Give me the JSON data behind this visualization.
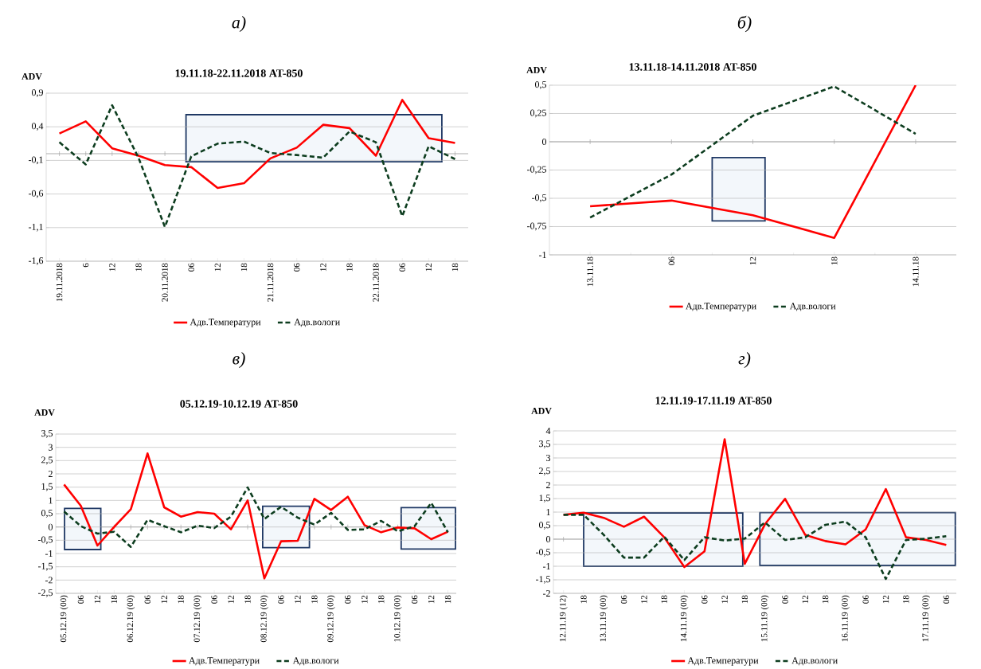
{
  "chart_data": [
    {
      "type": "line",
      "title": "19.11.18-22.11.2018 AT-850",
      "ylabel": "ADV",
      "annotations": [
        "а)"
      ],
      "categories": [
        "19.11.2018",
        "6",
        "12",
        "18",
        "20.11.2018",
        "06",
        "12",
        "18",
        "21.11.2018",
        "06",
        "12",
        "18",
        "22.11.2018",
        "06",
        "12",
        "18"
      ],
      "series": [
        {
          "name": "Адв.Температури",
          "color": "#ff0000",
          "line_style": "solid",
          "values": [
            0.3,
            0.48,
            0.08,
            -0.03,
            -0.17,
            -0.2,
            -0.51,
            -0.44,
            -0.07,
            0.09,
            0.43,
            0.38,
            -0.03,
            0.8,
            0.23,
            0.16
          ]
        },
        {
          "name": "Адв.вологи",
          "color": "#0d3d1f",
          "line_style": "dashed",
          "values": [
            0.17,
            -0.16,
            0.72,
            -0.06,
            -1.09,
            -0.04,
            0.15,
            0.18,
            0.01,
            -0.02,
            -0.06,
            0.33,
            0.17,
            -0.93,
            0.11,
            -0.08
          ]
        }
      ],
      "ylim": [
        -1.6,
        0.9
      ],
      "yticks": [
        {
          "value": -1.6,
          "label": "-1,6"
        },
        {
          "value": -1.1,
          "label": "-1,1"
        },
        {
          "value": -0.6,
          "label": "-0,6"
        },
        {
          "value": -0.1,
          "label": "-0,1"
        },
        {
          "value": 0.4,
          "label": "0,4"
        },
        {
          "value": 0.9,
          "label": "0,9"
        }
      ],
      "grid": "y",
      "legend": "bottom"
    },
    {
      "type": "line",
      "title": "13.11.18-14.11.2018  AT-850",
      "ylabel": "ADV",
      "annotations": [
        "б)"
      ],
      "categories": [
        "13.11.18",
        "06",
        "12",
        "18",
        "14.11.18"
      ],
      "series": [
        {
          "name": "Адв.Температури",
          "color": "#ff0000",
          "line_style": "solid",
          "values": [
            -0.57,
            -0.52,
            -0.65,
            -0.85,
            0.5
          ]
        },
        {
          "name": "Адв.вологи",
          "color": "#0d3d1f",
          "line_style": "dashed",
          "values": [
            -0.67,
            -0.29,
            0.23,
            0.49,
            0.07
          ]
        }
      ],
      "ylim": [
        -1,
        0.5
      ],
      "yticks": [
        -1,
        {
          "value": -0.75,
          "label": "-0,75"
        },
        {
          "value": -0.5,
          "label": "-0,5"
        },
        {
          "value": -0.25,
          "label": "-0,25"
        },
        0,
        {
          "value": 0.25,
          "label": "0,25"
        },
        {
          "value": 0.5,
          "label": "0,5"
        }
      ],
      "grid": "y",
      "legend": "bottom"
    },
    {
      "type": "line",
      "title": "05.12.19-10.12.19  AT-850",
      "ylabel": "ADV",
      "annotations": [
        "в)"
      ],
      "categories": [
        "05.12.19 (00)",
        "06",
        "12",
        "18",
        "06.12.19 (00)",
        "06",
        "12",
        "18",
        "07.12.19 (00)",
        "06",
        "12",
        "18",
        "08.12.19 (00)",
        "06",
        "12",
        "18",
        "09.12.19 (00)",
        "06",
        "12",
        "18",
        "10.12.19 (00)",
        "06",
        "12",
        "18"
      ],
      "series": [
        {
          "name": "Адв.Температури",
          "color": "#ff0000",
          "line_style": "solid",
          "values": [
            1.6,
            0.8,
            -0.7,
            0.0,
            0.67,
            2.77,
            0.74,
            0.39,
            0.56,
            0.5,
            -0.09,
            1.0,
            -1.94,
            -0.54,
            -0.52,
            1.06,
            0.64,
            1.14,
            0.07,
            -0.2,
            -0.02,
            -0.05,
            -0.46,
            -0.18
          ]
        },
        {
          "name": "Адв.вологи",
          "color": "#0d3d1f",
          "line_style": "dashed",
          "values": [
            0.58,
            0.03,
            -0.25,
            -0.18,
            -0.75,
            0.27,
            0.03,
            -0.2,
            0.05,
            -0.04,
            0.39,
            1.49,
            0.3,
            0.76,
            0.35,
            0.09,
            0.53,
            -0.11,
            -0.09,
            0.23,
            -0.16,
            0.03,
            0.91,
            -0.2
          ]
        }
      ],
      "ylim": [
        -2.5,
        3.5
      ],
      "yticks": [
        {
          "value": -2.5,
          "label": "-2,5"
        },
        -2,
        {
          "value": -1.5,
          "label": "-1,5"
        },
        -1,
        {
          "value": -0.5,
          "label": "-0,5"
        },
        0,
        {
          "value": 0.5,
          "label": "0,5"
        },
        1,
        {
          "value": 1.5,
          "label": "1,5"
        },
        2,
        {
          "value": 2.5,
          "label": "2,5"
        },
        3,
        {
          "value": 3.5,
          "label": "3,5"
        }
      ],
      "grid": "y",
      "legend": "bottom"
    },
    {
      "type": "line",
      "title": "12.11.19-17.11.19  AT-850",
      "ylabel": "ADV",
      "annotations": [
        "г)"
      ],
      "categories": [
        "12.11.19 (12)",
        "18",
        "13.11.19 (00)",
        "06",
        "12",
        "18",
        "14.11.19 (00)",
        "06",
        "12",
        "18",
        "15.11.19 (00)",
        "06",
        "12",
        "18",
        "16.11.19 (00)",
        "06",
        "12",
        "18",
        "17.11.19 (00)",
        "06"
      ],
      "series": [
        {
          "name": "Адв.Температури",
          "color": "#ff0000",
          "line_style": "solid",
          "values": [
            0.9,
            0.98,
            0.79,
            0.46,
            0.83,
            0.07,
            -1.03,
            -0.45,
            3.69,
            -0.91,
            0.55,
            1.49,
            0.16,
            -0.07,
            -0.19,
            0.36,
            1.85,
            0.07,
            -0.03,
            -0.21
          ]
        },
        {
          "name": "Адв.вологи",
          "color": "#0d3d1f",
          "line_style": "dashed",
          "values": [
            0.9,
            0.9,
            0.16,
            -0.68,
            -0.68,
            0.09,
            -0.77,
            0.07,
            -0.05,
            0.02,
            0.62,
            -0.03,
            0.07,
            0.53,
            0.65,
            0.07,
            -1.47,
            -0.03,
            0.02,
            0.11
          ]
        }
      ],
      "ylim": [
        -2,
        4
      ],
      "yticks": [
        -2,
        {
          "value": -1.5,
          "label": "-1,5"
        },
        -1,
        {
          "value": -0.5,
          "label": "-0,5"
        },
        0,
        {
          "value": 0.5,
          "label": "0,5"
        },
        1,
        {
          "value": 1.5,
          "label": "1,5"
        },
        2,
        {
          "value": 2.5,
          "label": "2,5"
        },
        3,
        {
          "value": 3.5,
          "label": "3,5"
        },
        4
      ],
      "grid": "y",
      "legend": "bottom"
    }
  ]
}
